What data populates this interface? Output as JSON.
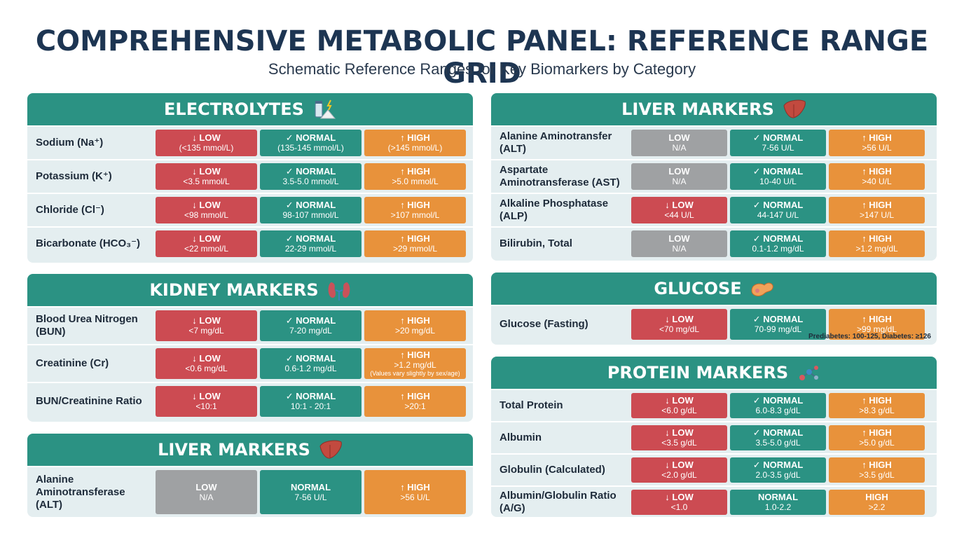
{
  "title": "COMPREHENSIVE METABOLIC PANEL: REFERENCE RANGE GRID",
  "subtitle": "Schematic Reference Ranges for Key Biomarkers by Category",
  "panels": [
    {
      "name": "ELECTROLYTES",
      "rows": [
        {
          "label": "Sodium (Na⁺)",
          "low": {
            "h": "↓ LOW",
            "v": "(<135 mmol/L)"
          },
          "normal": {
            "h": "✓ NORMAL",
            "v": "(135-145 mmol/L)"
          },
          "high": {
            "h": "↑ HIGH",
            "v": "(>145 mmol/L)"
          }
        },
        {
          "label": "Potassium (K⁺)",
          "low": {
            "h": "↓ LOW",
            "v": "<3.5 mmol/L"
          },
          "normal": {
            "h": "✓ NORMAL",
            "v": "3.5-5.0 mmol/L"
          },
          "high": {
            "h": "↑ HIGH",
            "v": ">5.0 mmol/L"
          }
        },
        {
          "label": "Chloride (Cl⁻)",
          "low": {
            "h": "↓ LOW",
            "v": "<98 mmol/L"
          },
          "normal": {
            "h": "✓ NORMAL",
            "v": "98-107 mmol/L"
          },
          "high": {
            "h": "↑ HIGH",
            "v": ">107 mmol/L"
          }
        },
        {
          "label": "Bicarbonate (HCO₃⁻)",
          "low": {
            "h": "↓ LOW",
            "v": "<22 mmol/L"
          },
          "normal": {
            "h": "✓ NORMAL",
            "v": "22-29 mmol/L"
          },
          "high": {
            "h": "↑ HIGH",
            "v": ">29 mmol/L"
          }
        }
      ]
    },
    {
      "name": "KIDNEY MARKERS",
      "rows": [
        {
          "label": "Blood Urea Nitrogen (BUN)",
          "low": {
            "h": "↓ LOW",
            "v": "<7 mg/dL"
          },
          "normal": {
            "h": "✓ NORMAL",
            "v": "7-20 mg/dL"
          },
          "high": {
            "h": "↑ HIGH",
            "v": ">20 mg/dL"
          }
        },
        {
          "label": "Creatinine (Cr)",
          "low": {
            "h": "↓ LOW",
            "v": "<0.6 mg/dL"
          },
          "normal": {
            "h": "✓ NORMAL",
            "v": "0.6-1.2 mg/dL"
          },
          "high": {
            "h": "↑ HIGH",
            "v": ">1.2 mg/dL",
            "n": "(Values vary slightly by sex/age)"
          }
        },
        {
          "label": "BUN/Creatinine Ratio",
          "low": {
            "h": "↓ LOW",
            "v": "<10:1"
          },
          "normal": {
            "h": "✓ NORMAL",
            "v": "10:1 - 20:1"
          },
          "high": {
            "h": "↑ HIGH",
            "v": ">20:1"
          }
        }
      ]
    },
    {
      "name": "LIVER MARKERS",
      "rows": [
        {
          "label": "Alanine Aminotransferase (ALT)",
          "low": {
            "h": "LOW",
            "v": "N/A"
          },
          "normal": {
            "h": "NORMAL",
            "v": "7-56 U/L"
          },
          "high": {
            "h": "↑ HIGH",
            "v": ">56 U/L"
          }
        }
      ]
    },
    {
      "name": "LIVER MARKERS",
      "rows": [
        {
          "label": "Alanine Aminotransfer (ALT)",
          "low": {
            "h": "LOW",
            "v": "N/A"
          },
          "normal": {
            "h": "✓ NORMAL",
            "v": "7-56 U/L"
          },
          "high": {
            "h": "↑ HIGH",
            "v": ">56 U/L"
          }
        },
        {
          "label": "Aspartate Aminotransferase (AST)",
          "low": {
            "h": "LOW",
            "v": "N/A"
          },
          "normal": {
            "h": "✓ NORMAL",
            "v": "10-40 U/L"
          },
          "high": {
            "h": "↑ HIGH",
            "v": ">40 U/L"
          }
        },
        {
          "label": "Alkaline Phosphatase (ALP)",
          "low": {
            "h": "↓ LOW",
            "v": "<44 U/L"
          },
          "normal": {
            "h": "✓ NORMAL",
            "v": "44-147 U/L"
          },
          "high": {
            "h": "↑ HIGH",
            "v": ">147 U/L"
          }
        },
        {
          "label": "Bilirubin, Total",
          "low": {
            "h": "LOW",
            "v": "N/A"
          },
          "normal": {
            "h": "✓ NORMAL",
            "v": "0.1-1.2 mg/dL"
          },
          "high": {
            "h": "↑ HIGH",
            "v": ">1.2 mg/dL"
          }
        }
      ]
    },
    {
      "name": "GLUCOSE",
      "rows": [
        {
          "label": "Glucose (Fasting)",
          "low": {
            "h": "↓ LOW",
            "v": "<70 mg/dL"
          },
          "normal": {
            "h": "✓ NORMAL",
            "v": "70-99 mg/dL"
          },
          "high": {
            "h": "↑ HIGH",
            "v": ">99 mg/dL"
          }
        }
      ],
      "note": "Prediabetes: 100-125, Diabetes: ≥126"
    },
    {
      "name": "PROTEIN MARKERS",
      "rows": [
        {
          "label": "Total Protein",
          "low": {
            "h": "↓ LOW",
            "v": "<6.0 g/dL"
          },
          "normal": {
            "h": "✓ NORMAL",
            "v": "6.0-8.3 g/dL"
          },
          "high": {
            "h": "↑ HIGH",
            "v": ">8.3 g/dL"
          }
        },
        {
          "label": "Albumin",
          "low": {
            "h": "↓ LOW",
            "v": "<3.5 g/dL"
          },
          "normal": {
            "h": "✓ NORMAL",
            "v": "3.5-5.0 g/dL"
          },
          "high": {
            "h": "↑ HIGH",
            "v": ">5.0 g/dL"
          }
        },
        {
          "label": "Globulin (Calculated)",
          "low": {
            "h": "↓ LOW",
            "v": "<2.0 g/dL"
          },
          "normal": {
            "h": "✓ NORMAL",
            "v": "2.0-3.5 g/dL"
          },
          "high": {
            "h": "↑ HIGH",
            "v": ">3.5 g/dL"
          }
        },
        {
          "label": "Albumin/Globulin Ratio (A/G)",
          "low": {
            "h": "↓ LOW",
            "v": "<1.0"
          },
          "normal": {
            "h": "NORMAL",
            "v": "1.0-2.2"
          },
          "high": {
            "h": "HIGH",
            "v": ">2.2"
          }
        }
      ]
    }
  ],
  "colors": {
    "header": "#2b9283",
    "low": "#cc4b52",
    "normal": "#2b9283",
    "high": "#e8923b",
    "na": "#9fa1a3"
  },
  "icons": [
    "electrolytes-icon",
    "kidney-icon",
    "liver-icon",
    "liver-icon",
    "pancreas-icon",
    "molecule-icon"
  ]
}
